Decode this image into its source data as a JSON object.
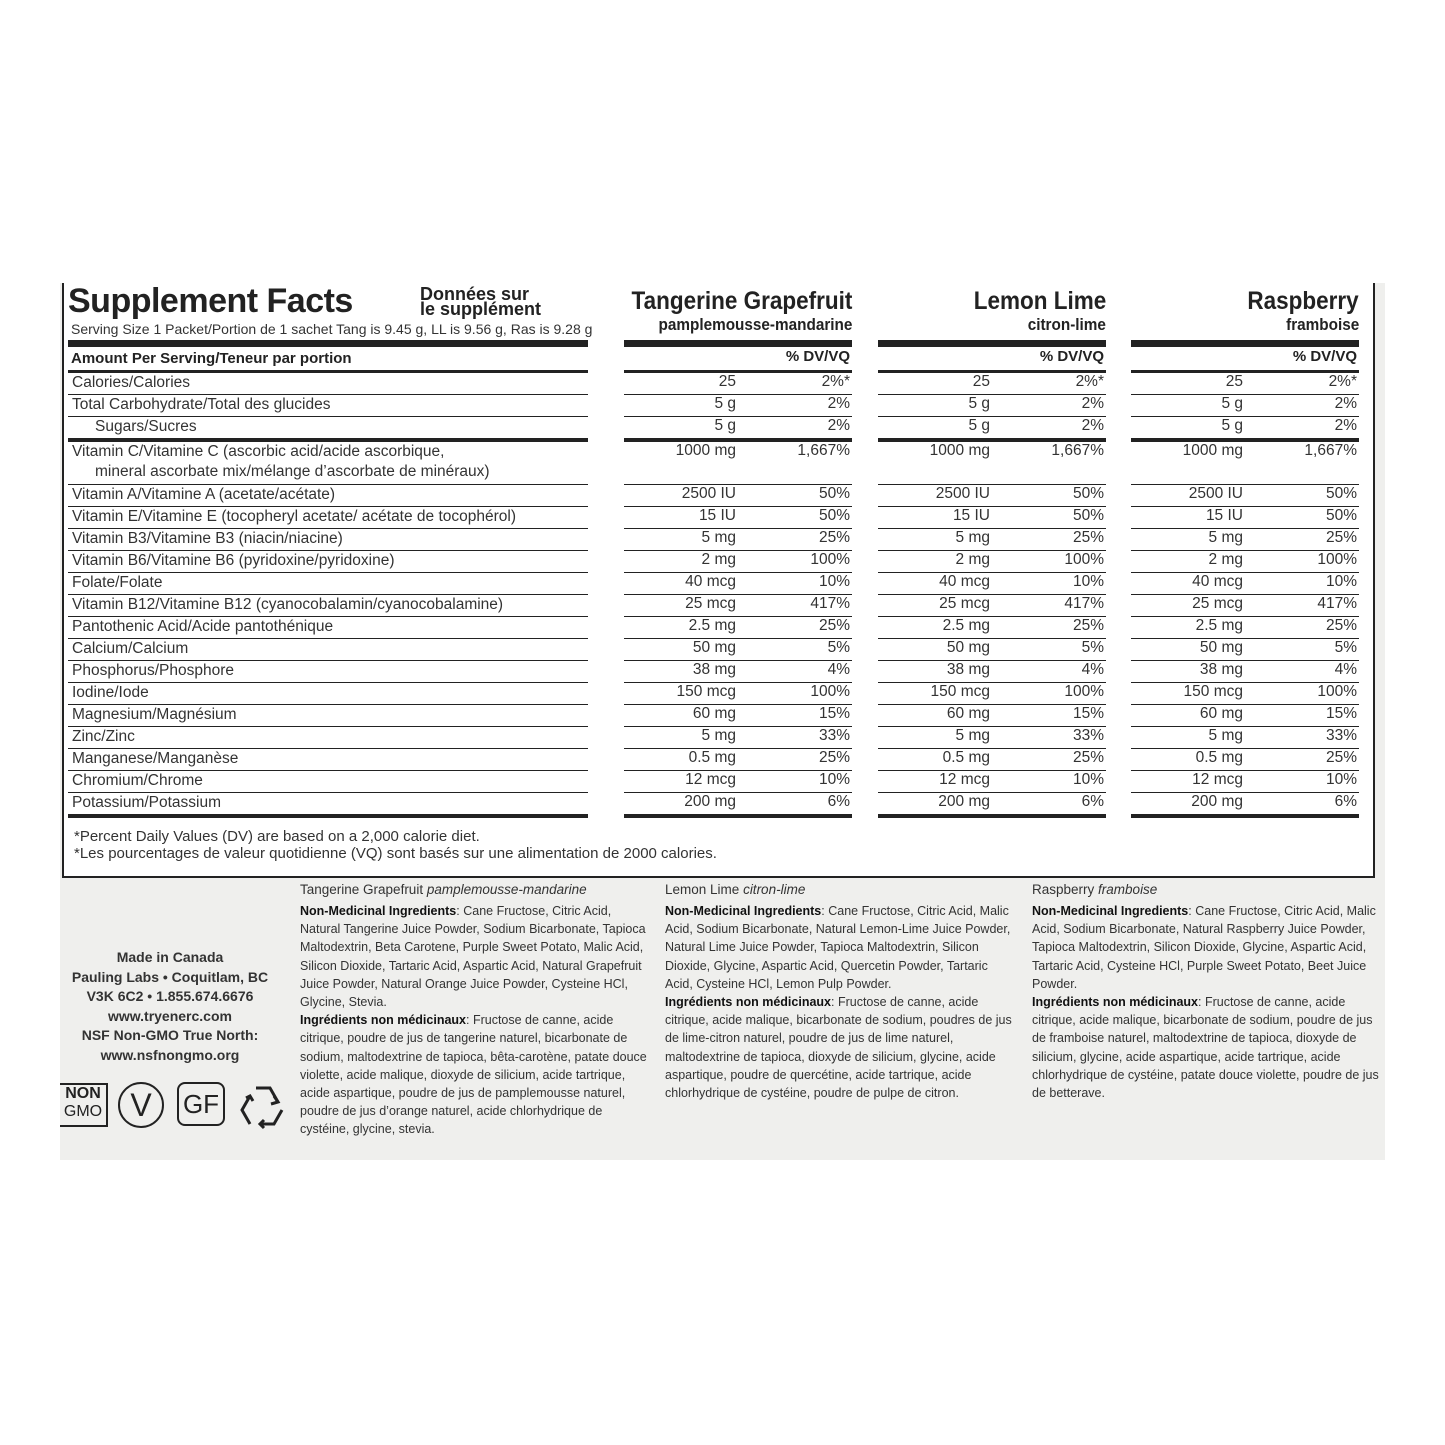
{
  "facts": {
    "title": "Supplement Facts",
    "title_fr": [
      "Données sur",
      "le supplément"
    ],
    "serving": "Serving Size 1 Packet/Portion de 1 sachet Tang is 9.45 g, LL is 9.56 g, Ras is 9.28 g",
    "amount_header": "Amount Per Serving/Teneur par portion",
    "nutrients": [
      [
        "Calories/Calories"
      ],
      [
        "Total Carbohydrate/Total des glucides"
      ],
      [
        "Sugars/Sucres"
      ],
      [
        "Vitamin C/Vitamine C (ascorbic acid/acide ascorbique,",
        "mineral ascorbate mix/mélange d’ascorbate de minéraux)"
      ],
      [
        "Vitamin A/Vitamine A (acetate/acétate)"
      ],
      [
        "Vitamin E/Vitamine E (tocopheryl acetate/ acétate de tocophérol)"
      ],
      [
        "Vitamin B3/Vitamine B3 (niacin/niacine)"
      ],
      [
        "Vitamin B6/Vitamine B6 (pyridoxine/pyridoxine)"
      ],
      [
        "Folate/Folate"
      ],
      [
        "Vitamin B12/Vitamine B12 (cyanocobalamin/cyanocobalamine)"
      ],
      [
        "Pantothenic Acid/Acide pantothénique"
      ],
      [
        "Calcium/Calcium"
      ],
      [
        "Phosphorus/Phosphore"
      ],
      [
        "Iodine/Iode"
      ],
      [
        "Magnesium/Magnésium"
      ],
      [
        "Zinc/Zinc"
      ],
      [
        "Manganese/Manganèse"
      ],
      [
        "Chromium/Chrome"
      ],
      [
        "Potassium/Potassium"
      ]
    ],
    "flavors": [
      {
        "name": "Tangerine Grapefruit",
        "name_fr": "pamplemousse-mandarine",
        "dv_header": "% DV/VQ",
        "rows": [
          [
            "25",
            "2%*"
          ],
          [
            "5 g",
            "2%"
          ],
          [
            "5 g",
            "2%"
          ],
          [
            "1000 mg",
            "1,667%"
          ],
          [
            "2500 IU",
            "50%"
          ],
          [
            "15 IU",
            "50%"
          ],
          [
            "5 mg",
            "25%"
          ],
          [
            "2 mg",
            "100%"
          ],
          [
            "40 mcg",
            "10%"
          ],
          [
            "25 mcg",
            "417%"
          ],
          [
            "2.5 mg",
            "25%"
          ],
          [
            "50 mg",
            "5%"
          ],
          [
            "38 mg",
            "4%"
          ],
          [
            "150 mcg",
            "100%"
          ],
          [
            "60 mg",
            "15%"
          ],
          [
            "5 mg",
            "33%"
          ],
          [
            "0.5 mg",
            "25%"
          ],
          [
            "12 mcg",
            "10%"
          ],
          [
            "200 mg",
            "6%"
          ]
        ]
      },
      {
        "name": "Lemon Lime",
        "name_fr": "citron-lime",
        "dv_header": "% DV/VQ",
        "rows": [
          [
            "25",
            "2%*"
          ],
          [
            "5 g",
            "2%"
          ],
          [
            "5 g",
            "2%"
          ],
          [
            "1000 mg",
            "1,667%"
          ],
          [
            "2500 IU",
            "50%"
          ],
          [
            "15 IU",
            "50%"
          ],
          [
            "5 mg",
            "25%"
          ],
          [
            "2 mg",
            "100%"
          ],
          [
            "40 mcg",
            "10%"
          ],
          [
            "25 mcg",
            "417%"
          ],
          [
            "2.5 mg",
            "25%"
          ],
          [
            "50 mg",
            "5%"
          ],
          [
            "38 mg",
            "4%"
          ],
          [
            "150 mcg",
            "100%"
          ],
          [
            "60 mg",
            "15%"
          ],
          [
            "5 mg",
            "33%"
          ],
          [
            "0.5 mg",
            "25%"
          ],
          [
            "12 mcg",
            "10%"
          ],
          [
            "200 mg",
            "6%"
          ]
        ]
      },
      {
        "name": "Raspberry",
        "name_fr": "framboise",
        "dv_header": "% DV/VQ",
        "rows": [
          [
            "25",
            "2%*"
          ],
          [
            "5 g",
            "2%"
          ],
          [
            "5 g",
            "2%"
          ],
          [
            "1000 mg",
            "1,667%"
          ],
          [
            "2500 IU",
            "50%"
          ],
          [
            "15 IU",
            "50%"
          ],
          [
            "5 mg",
            "25%"
          ],
          [
            "2 mg",
            "100%"
          ],
          [
            "40 mcg",
            "10%"
          ],
          [
            "25 mcg",
            "417%"
          ],
          [
            "2.5 mg",
            "25%"
          ],
          [
            "50 mg",
            "5%"
          ],
          [
            "38 mg",
            "4%"
          ],
          [
            "150 mcg",
            "100%"
          ],
          [
            "60 mg",
            "15%"
          ],
          [
            "5 mg",
            "33%"
          ],
          [
            "0.5 mg",
            "25%"
          ],
          [
            "12 mcg",
            "10%"
          ],
          [
            "200 mg",
            "6%"
          ]
        ]
      }
    ],
    "footnotes": [
      "*Percent Daily Values (DV) are based on a 2,000 calorie diet.",
      "*Les pourcentages de valeur quotidienne (VQ) sont basés sur une alimentation de 2000 calories."
    ]
  },
  "ingredients": [
    {
      "flavor": "Tangerine Grapefruit",
      "flavor_fr": "pamplemousse-mandarine",
      "label": "Non-Medicinal Ingredients",
      "text": ": Cane Fructose, Citric Acid, Natural Tangerine Juice Powder, Sodium Bicarbonate, Tapioca Maltodextrin, Beta Carotene, Purple Sweet Potato, Malic Acid, Silicon Dioxide, Tartaric Acid, Aspartic Acid, Natural Grapefruit Juice Powder, Natural Orange Juice Powder, Cysteine HCl, Glycine, Stevia.",
      "label_fr": "Ingrédients non médicinaux",
      "text_fr": ": Fructose de canne, acide citrique, poudre de jus de tangerine naturel, bicarbonate de sodium, maltodextrine de tapioca, bêta-carotène, patate douce violette, acide malique, dioxyde de silicium, acide tartrique, acide aspartique, poudre de jus de pamplemousse naturel, poudre de jus d’orange naturel, acide chlorhydrique de cystéine, glycine, stevia."
    },
    {
      "flavor": "Lemon Lime",
      "flavor_fr": "citron-lime",
      "label": "Non-Medicinal Ingredients",
      "text": ": Cane Fructose, Citric Acid, Malic Acid, Sodium Bicarbonate, Natural Lemon-Lime Juice Powder, Natural Lime Juice Powder, Tapioca Maltodextrin, Silicon Dioxide, Glycine, Aspartic Acid, Quercetin Powder, Tartaric Acid, Cysteine HCl, Lemon Pulp Powder.",
      "label_fr": "Ingrédients non médicinaux",
      "text_fr": ": Fructose de canne, acide citrique, acide malique, bicarbonate de sodium, poudres de jus de lime-citron naturel, poudre de jus de lime naturel, maltodextrine de tapioca, dioxyde de silicium, glycine, acide aspartique, poudre de quercétine, acide tartrique, acide chlorhydrique de cystéine, poudre de pulpe de citron."
    },
    {
      "flavor": "Raspberry",
      "flavor_fr": "framboise",
      "label": "Non-Medicinal Ingredients",
      "text": ": Cane Fructose, Citric Acid, Malic Acid, Sodium Bicarbonate, Natural Raspberry Juice Powder, Tapioca Maltodextrin, Silicon Dioxide, Glycine, Aspartic Acid, Tartaric Acid, Cysteine HCl, Purple Sweet Potato, Beet Juice Powder.",
      "label_fr": "Ingrédients non médicinaux",
      "text_fr": ": Fructose de canne, acide citrique, acide malique, bicarbonate de sodium, poudre de jus de framboise naturel, maltodextrine de tapioca, dioxyde de silicium, glycine, acide aspartique, acide tartrique, acide chlorhydrique de cystéine, patate douce violette, poudre de jus de betterave."
    }
  ],
  "maker": [
    "Made in Canada",
    "Pauling Labs • Coquitlam, BC",
    "V3K 6C2 • 1.855.674.6676",
    "www.tryenerc.com",
    "NSF Non-GMO True North:",
    "www.nsfnongmo.org"
  ],
  "logos": {
    "non_gmo": [
      "NON",
      "GMO"
    ],
    "vegan": "V",
    "gluten_free": "GF"
  }
}
